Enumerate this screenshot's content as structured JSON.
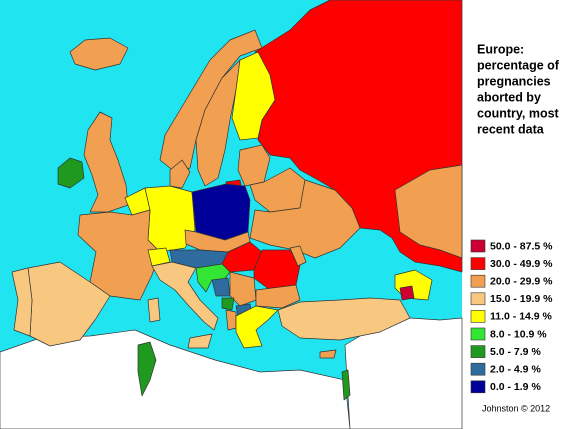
{
  "title_lines": [
    "Europe:",
    "percentage of",
    "pregnancies",
    "aborted by",
    "country, most",
    "recent data"
  ],
  "legend": [
    {
      "label": "50.0 - 87.5 %",
      "color": "#cc0033"
    },
    {
      "label": "30.0 - 49.9 %",
      "color": "#ff0000"
    },
    {
      "label": "20.0 - 29.9 %",
      "color": "#f0a050"
    },
    {
      "label": "15.0 - 19.9 %",
      "color": "#f8c880"
    },
    {
      "label": "11.0 - 14.9 %",
      "color": "#ffff00"
    },
    {
      "label": "8.0 - 10.9 %",
      "color": "#33e633"
    },
    {
      "label": "5.0 -  7.9 %",
      "color": "#1f9a1f"
    },
    {
      "label": "2.0 -  4.9 %",
      "color": "#2e6b9e"
    },
    {
      "label": "0.0 -  1.9 %",
      "color": "#000099"
    }
  ],
  "credit": "Johnston © 2012"
}
